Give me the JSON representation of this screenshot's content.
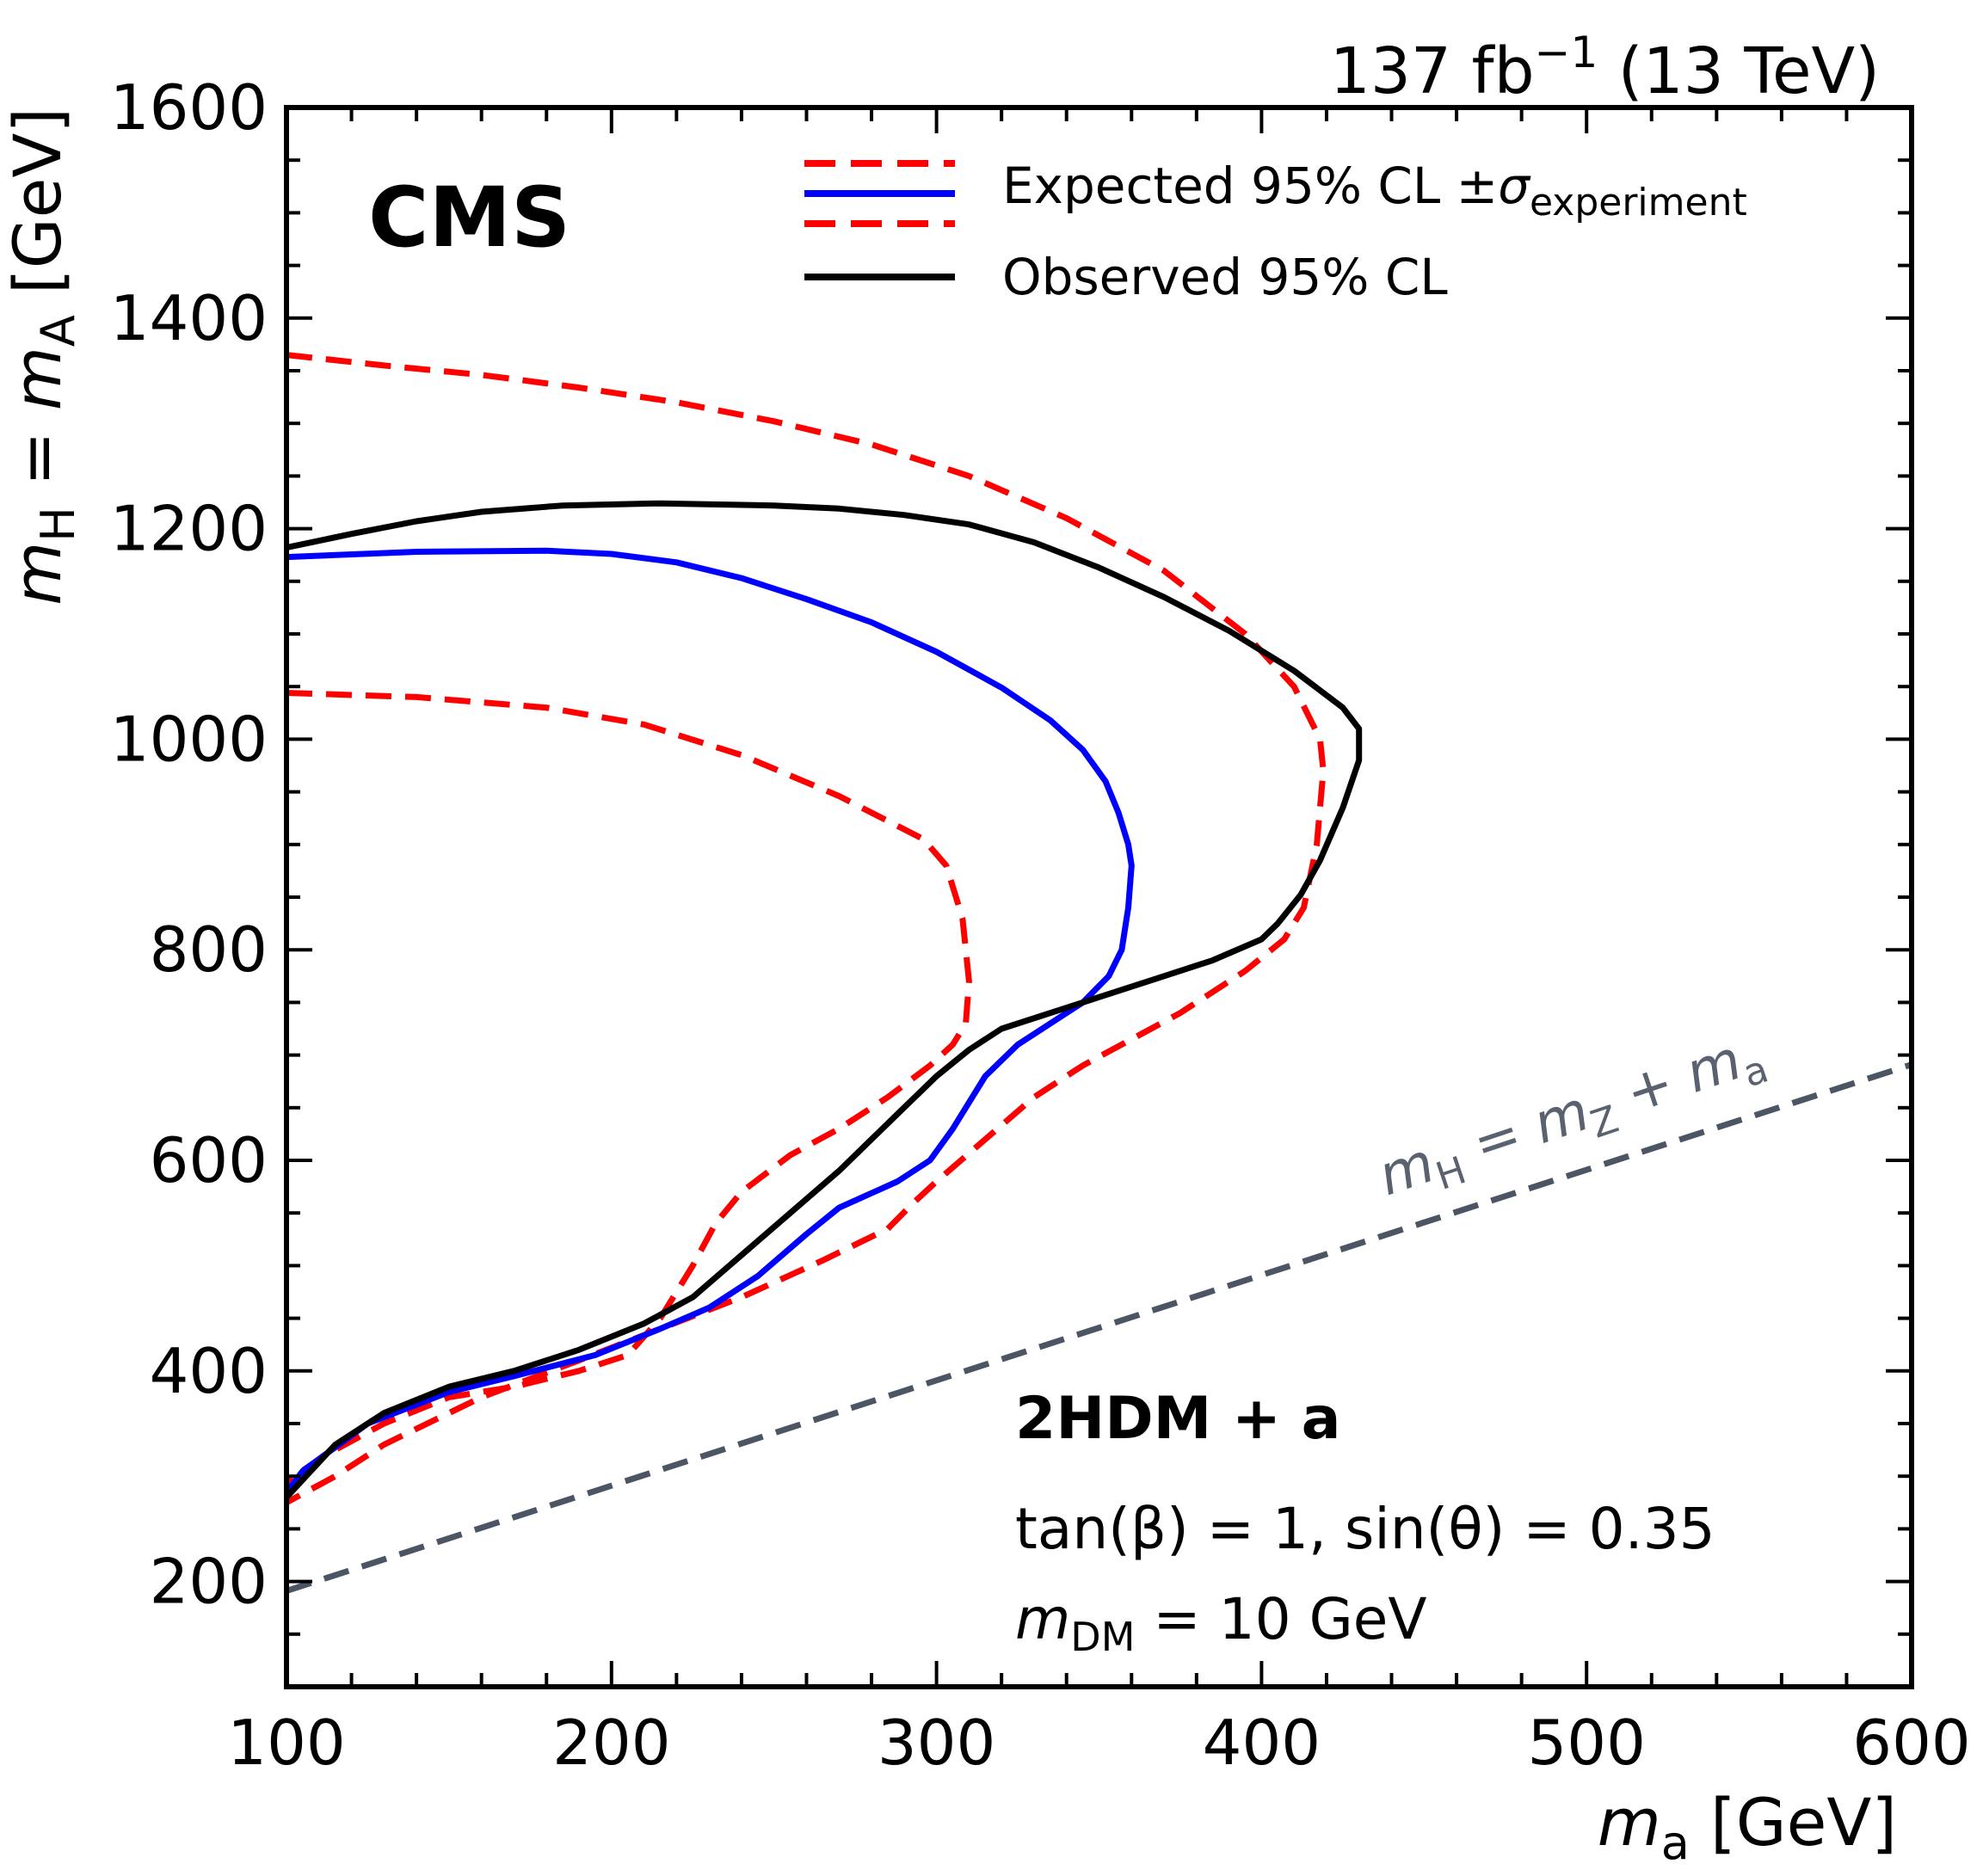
{
  "chart_data": {
    "type": "line",
    "lumi_label": {
      "prefix": "137 fb",
      "sup": "−1",
      "suffix": " (13 TeV)"
    },
    "experiment_label": "CMS",
    "model_title": "2HDM + a",
    "params_line1": "tan(β) = 1, sin(θ) = 0.35",
    "params_line2": {
      "m": "m",
      "sub": "DM",
      "rest": " = 10 GeV"
    },
    "xlabel": {
      "m": "m",
      "sub": "a",
      "unit": " [GeV]"
    },
    "ylabel": {
      "m1": "m",
      "sub1": "H",
      "eq": " = ",
      "m2": "m",
      "sub2": "A",
      "unit": " [GeV]"
    },
    "xlim": [
      100,
      600
    ],
    "ylim": [
      100,
      1600
    ],
    "x_ticks": [
      100,
      200,
      300,
      400,
      500,
      600
    ],
    "x_tick_labels": [
      "100",
      "200",
      "300",
      "400",
      "500",
      "600"
    ],
    "y_ticks": [
      200,
      400,
      600,
      800,
      1000,
      1200,
      1400,
      1600
    ],
    "y_tick_labels": [
      "200",
      "400",
      "600",
      "800",
      "1000",
      "1200",
      "1400",
      "1600"
    ],
    "legend": {
      "expected_main": "Expected 95% CL ±",
      "expected_sigma": "σ",
      "expected_sub": "experiment",
      "observed": "Observed 95% CL"
    },
    "diagonal_label": {
      "m1": "m",
      "sub1": "H",
      "eq": " = ",
      "m2": "m",
      "sub2": "Z",
      "plus": " + ",
      "m3": "m",
      "sub3": "a"
    },
    "colors": {
      "expected_band": "#ff0000",
      "expected": "#0000ff",
      "observed": "#000000",
      "diagonal": "#4b5563"
    },
    "series": [
      {
        "name": "Expected 95% CL ±σexperiment",
        "style": "dashed",
        "points": [
          [
            100,
            1365
          ],
          [
            130,
            1355
          ],
          [
            160,
            1346
          ],
          [
            190,
            1334
          ],
          [
            220,
            1320
          ],
          [
            250,
            1302
          ],
          [
            280,
            1280
          ],
          [
            310,
            1250
          ],
          [
            340,
            1210
          ],
          [
            370,
            1160
          ],
          [
            395,
            1100
          ],
          [
            410,
            1050
          ],
          [
            418,
            1000
          ],
          [
            419,
            970
          ],
          [
            417,
            900
          ],
          [
            413,
            840
          ],
          [
            407,
            810
          ],
          [
            395,
            780
          ],
          [
            375,
            740
          ],
          [
            345,
            690
          ],
          [
            330,
            660
          ],
          [
            315,
            620
          ],
          [
            300,
            580
          ],
          [
            293,
            560
          ],
          [
            285,
            535
          ],
          [
            265,
            505
          ],
          [
            240,
            470
          ],
          [
            215,
            440
          ],
          [
            190,
            410
          ],
          [
            160,
            375
          ],
          [
            130,
            330
          ],
          [
            115,
            300
          ],
          [
            100,
            275
          ]
        ]
      },
      {
        "name": "Expected 95% CL ±σexperiment",
        "style": "dashed",
        "points": [
          [
            100,
            1044
          ],
          [
            140,
            1040
          ],
          [
            180,
            1030
          ],
          [
            210,
            1014
          ],
          [
            240,
            985
          ],
          [
            270,
            946
          ],
          [
            296,
            905
          ],
          [
            303,
            880
          ],
          [
            308,
            830
          ],
          [
            310,
            770
          ],
          [
            309,
            730
          ],
          [
            305,
            710
          ],
          [
            298,
            690
          ],
          [
            285,
            660
          ],
          [
            270,
            630
          ],
          [
            255,
            605
          ],
          [
            240,
            570
          ],
          [
            232,
            540
          ],
          [
            225,
            500
          ],
          [
            215,
            450
          ],
          [
            205,
            415
          ],
          [
            190,
            400
          ],
          [
            170,
            385
          ],
          [
            150,
            375
          ],
          [
            130,
            350
          ],
          [
            112,
            320
          ],
          [
            100,
            295
          ]
        ]
      },
      {
        "name": "Expected 95% CL",
        "style": "solid",
        "points": [
          [
            100,
            1173
          ],
          [
            140,
            1178
          ],
          [
            180,
            1179
          ],
          [
            200,
            1176
          ],
          [
            220,
            1168
          ],
          [
            240,
            1153
          ],
          [
            260,
            1133
          ],
          [
            280,
            1111
          ],
          [
            300,
            1083
          ],
          [
            320,
            1049
          ],
          [
            335,
            1018
          ],
          [
            345,
            990
          ],
          [
            352,
            960
          ],
          [
            356,
            930
          ],
          [
            359,
            900
          ],
          [
            360,
            880
          ],
          [
            359,
            840
          ],
          [
            357,
            800
          ],
          [
            353,
            775
          ],
          [
            345,
            750
          ],
          [
            335,
            730
          ],
          [
            325,
            710
          ],
          [
            315,
            680
          ],
          [
            305,
            630
          ],
          [
            298,
            600
          ],
          [
            288,
            580
          ],
          [
            270,
            555
          ],
          [
            260,
            530
          ],
          [
            245,
            490
          ],
          [
            230,
            460
          ],
          [
            215,
            440
          ],
          [
            195,
            415
          ],
          [
            170,
            395
          ],
          [
            150,
            380
          ],
          [
            125,
            350
          ],
          [
            105,
            305
          ],
          [
            100,
            285
          ]
        ]
      },
      {
        "name": "Observed 95% CL",
        "style": "solid",
        "points": [
          [
            100,
            1182
          ],
          [
            120,
            1195
          ],
          [
            140,
            1207
          ],
          [
            160,
            1216
          ],
          [
            185,
            1222
          ],
          [
            215,
            1224
          ],
          [
            250,
            1222
          ],
          [
            270,
            1219
          ],
          [
            290,
            1213
          ],
          [
            310,
            1204
          ],
          [
            330,
            1187
          ],
          [
            350,
            1163
          ],
          [
            370,
            1135
          ],
          [
            390,
            1103
          ],
          [
            410,
            1065
          ],
          [
            425,
            1030
          ],
          [
            430,
            1010
          ],
          [
            430,
            980
          ],
          [
            425,
            935
          ],
          [
            418,
            885
          ],
          [
            412,
            852
          ],
          [
            405,
            825
          ],
          [
            400,
            810
          ],
          [
            385,
            790
          ],
          [
            370,
            775
          ],
          [
            345,
            750
          ],
          [
            320,
            725
          ],
          [
            310,
            705
          ],
          [
            300,
            680
          ],
          [
            290,
            650
          ],
          [
            280,
            620
          ],
          [
            270,
            590
          ],
          [
            255,
            550
          ],
          [
            240,
            510
          ],
          [
            225,
            470
          ],
          [
            210,
            445
          ],
          [
            190,
            420
          ],
          [
            170,
            400
          ],
          [
            150,
            385
          ],
          [
            130,
            360
          ],
          [
            115,
            330
          ],
          [
            100,
            280
          ]
        ]
      },
      {
        "name": "m_H = m_Z + m_a",
        "style": "dashed",
        "points": [
          [
            100,
            191
          ],
          [
            600,
            691
          ]
        ]
      }
    ]
  }
}
